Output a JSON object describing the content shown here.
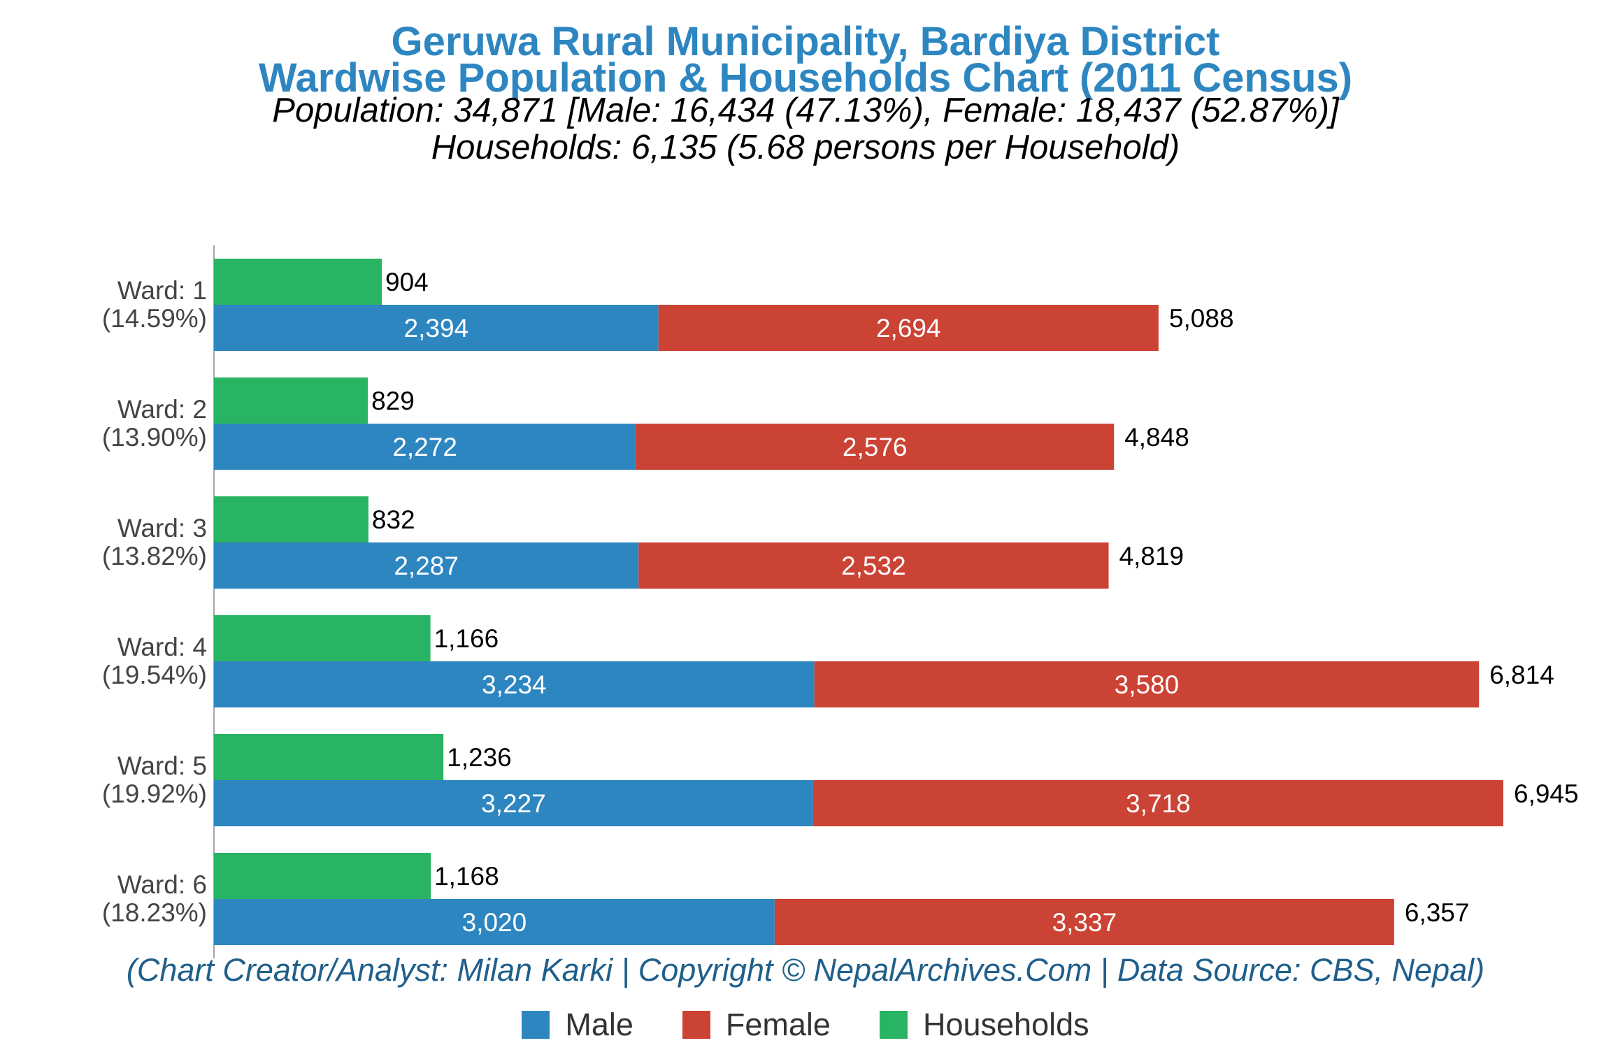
{
  "header": {
    "title_line1": "Geruwa Rural Municipality, Bardiya District",
    "title_line2": "Wardwise Population & Households Chart (2011 Census)",
    "subtitle_line1": "Population: 34,871 [Male: 16,434 (47.13%), Female: 18,437 (52.87%)]",
    "subtitle_line2": "Households: 6,135 (5.68 persons per Household)"
  },
  "footer": "(Chart Creator/Analyst: Milan Karki | Copyright © NepalArchives.Com | Data Source: CBS, Nepal)",
  "colors": {
    "male": "#2e86c1",
    "female": "#cb4335",
    "households": "#28b463",
    "title": "#2e86c1"
  },
  "legend": {
    "male": "Male",
    "female": "Female",
    "households": "Households"
  },
  "chart_data": {
    "type": "bar",
    "orientation": "horizontal",
    "categories": [
      "Ward: 1",
      "Ward: 2",
      "Ward: 3",
      "Ward: 4",
      "Ward: 5",
      "Ward: 6"
    ],
    "category_shares": [
      "(14.59%)",
      "(13.90%)",
      "(13.82%)",
      "(19.54%)",
      "(19.92%)",
      "(18.23%)"
    ],
    "series": [
      {
        "name": "Male",
        "values": [
          2394,
          2272,
          2287,
          3234,
          3227,
          3020
        ],
        "labels": [
          "2,394",
          "2,272",
          "2,287",
          "3,234",
          "3,227",
          "3,020"
        ]
      },
      {
        "name": "Female",
        "values": [
          2694,
          2576,
          2532,
          3580,
          3718,
          3337
        ],
        "labels": [
          "2,694",
          "2,576",
          "2,532",
          "3,580",
          "3,718",
          "3,337"
        ]
      },
      {
        "name": "Households",
        "values": [
          904,
          829,
          832,
          1166,
          1236,
          1168
        ],
        "labels": [
          "904",
          "829",
          "832",
          "1,166",
          "1,236",
          "1,168"
        ]
      }
    ],
    "totals": [
      5088,
      4848,
      4819,
      6814,
      6945,
      6357
    ],
    "total_labels": [
      "5,088",
      "4,848",
      "4,819",
      "6,814",
      "6,945",
      "6,357"
    ],
    "stacked": [
      "Male",
      "Female"
    ],
    "legend_position": "bottom",
    "grid": false
  }
}
